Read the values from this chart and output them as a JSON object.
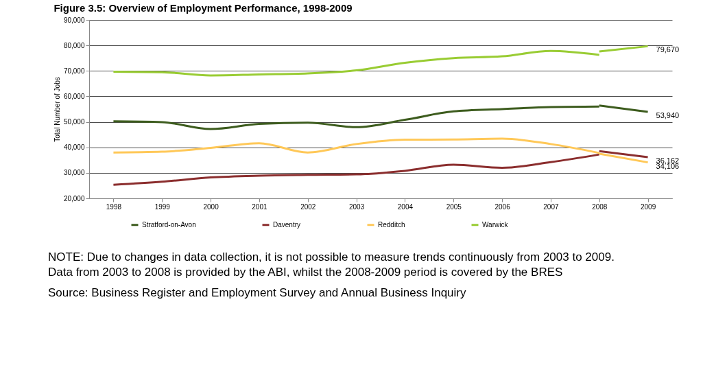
{
  "chart_data": {
    "type": "line",
    "title": "Figure 3.5: Overview of Employment Performance, 1998-2009",
    "ylabel": "Total Number of Jobs",
    "categories": [
      "1998",
      "1999",
      "2000",
      "2001",
      "2002",
      "2003",
      "2004",
      "2005",
      "2006",
      "2007",
      "2008",
      "2009"
    ],
    "ylim": [
      20000,
      90000
    ],
    "yticks": [
      {
        "value": 20000,
        "label": "20,000"
      },
      {
        "value": 30000,
        "label": "30,000"
      },
      {
        "value": 40000,
        "label": "40,000"
      },
      {
        "value": 50000,
        "label": "50,000"
      },
      {
        "value": 60000,
        "label": "60,000"
      },
      {
        "value": 70000,
        "label": "70,000"
      },
      {
        "value": 80000,
        "label": "80,000"
      },
      {
        "value": 90000,
        "label": "90,000"
      }
    ],
    "grid": "y",
    "legend": "bottom",
    "marker": "none",
    "line_style": "solid",
    "series": [
      {
        "name": "Stratford-on-Avon",
        "color": "#3d5c1e",
        "values": [
          50200,
          49900,
          47200,
          49200,
          49700,
          47900,
          50800,
          54100,
          55000,
          55800,
          56000,
          null
        ],
        "value_labels": [
          null,
          null,
          null,
          null,
          null,
          null,
          null,
          null,
          null,
          null,
          null,
          null
        ]
      },
      {
        "name": "Daventry",
        "color": "#8b2e2e",
        "values": [
          25300,
          26500,
          28200,
          28900,
          29200,
          29400,
          30800,
          33200,
          32000,
          34200,
          37200,
          null
        ],
        "value_labels": [
          null,
          null,
          null,
          null,
          null,
          null,
          null,
          null,
          null,
          null,
          null,
          null
        ]
      },
      {
        "name": "Redditch",
        "color": "#ffc858",
        "values": [
          38000,
          38300,
          39800,
          41600,
          38000,
          41300,
          43000,
          43100,
          43400,
          41300,
          37800,
          null
        ],
        "value_labels": [
          null,
          null,
          null,
          null,
          null,
          null,
          null,
          null,
          null,
          null,
          null,
          null
        ]
      },
      {
        "name": "Warwick",
        "color": "#99cc33",
        "values": [
          69700,
          69500,
          68200,
          68600,
          69000,
          70200,
          73200,
          75000,
          75700,
          77800,
          76300,
          null
        ],
        "value_labels": [
          null,
          null,
          null,
          null,
          null,
          null,
          null,
          null,
          null,
          null,
          null,
          null
        ]
      },
      {
        "color": "#3d5c1e",
        "values": [
          null,
          null,
          null,
          null,
          null,
          null,
          null,
          null,
          null,
          null,
          56400,
          53940
        ],
        "value_labels": [
          null,
          null,
          null,
          null,
          null,
          null,
          null,
          null,
          null,
          null,
          null,
          "53,940"
        ]
      },
      {
        "color": "#8b2e2e",
        "values": [
          null,
          null,
          null,
          null,
          null,
          null,
          null,
          null,
          null,
          null,
          38500,
          36162
        ],
        "value_labels": [
          null,
          null,
          null,
          null,
          null,
          null,
          null,
          null,
          null,
          null,
          null,
          "36,162"
        ]
      },
      {
        "color": "#ffc858",
        "values": [
          null,
          null,
          null,
          null,
          null,
          null,
          null,
          null,
          null,
          null,
          37500,
          34106
        ],
        "value_labels": [
          null,
          null,
          null,
          null,
          null,
          null,
          null,
          null,
          null,
          null,
          null,
          "34,106"
        ]
      },
      {
        "color": "#99cc33",
        "values": [
          null,
          null,
          null,
          null,
          null,
          null,
          null,
          null,
          null,
          null,
          77600,
          79670
        ],
        "value_labels": [
          null,
          null,
          null,
          null,
          null,
          null,
          null,
          null,
          null,
          null,
          null,
          "79,670"
        ]
      }
    ],
    "annotations": [
      "NOTE: Due to changes in data collection, it is not possible to measure trends continuously from 2003 to 2009. Data from 2003 to 2008 is provided by the ABI, whilst the 2008-2009 period is covered by the BRES",
      "Source: Business Register and Employment Survey and Annual Business Inquiry"
    ]
  }
}
